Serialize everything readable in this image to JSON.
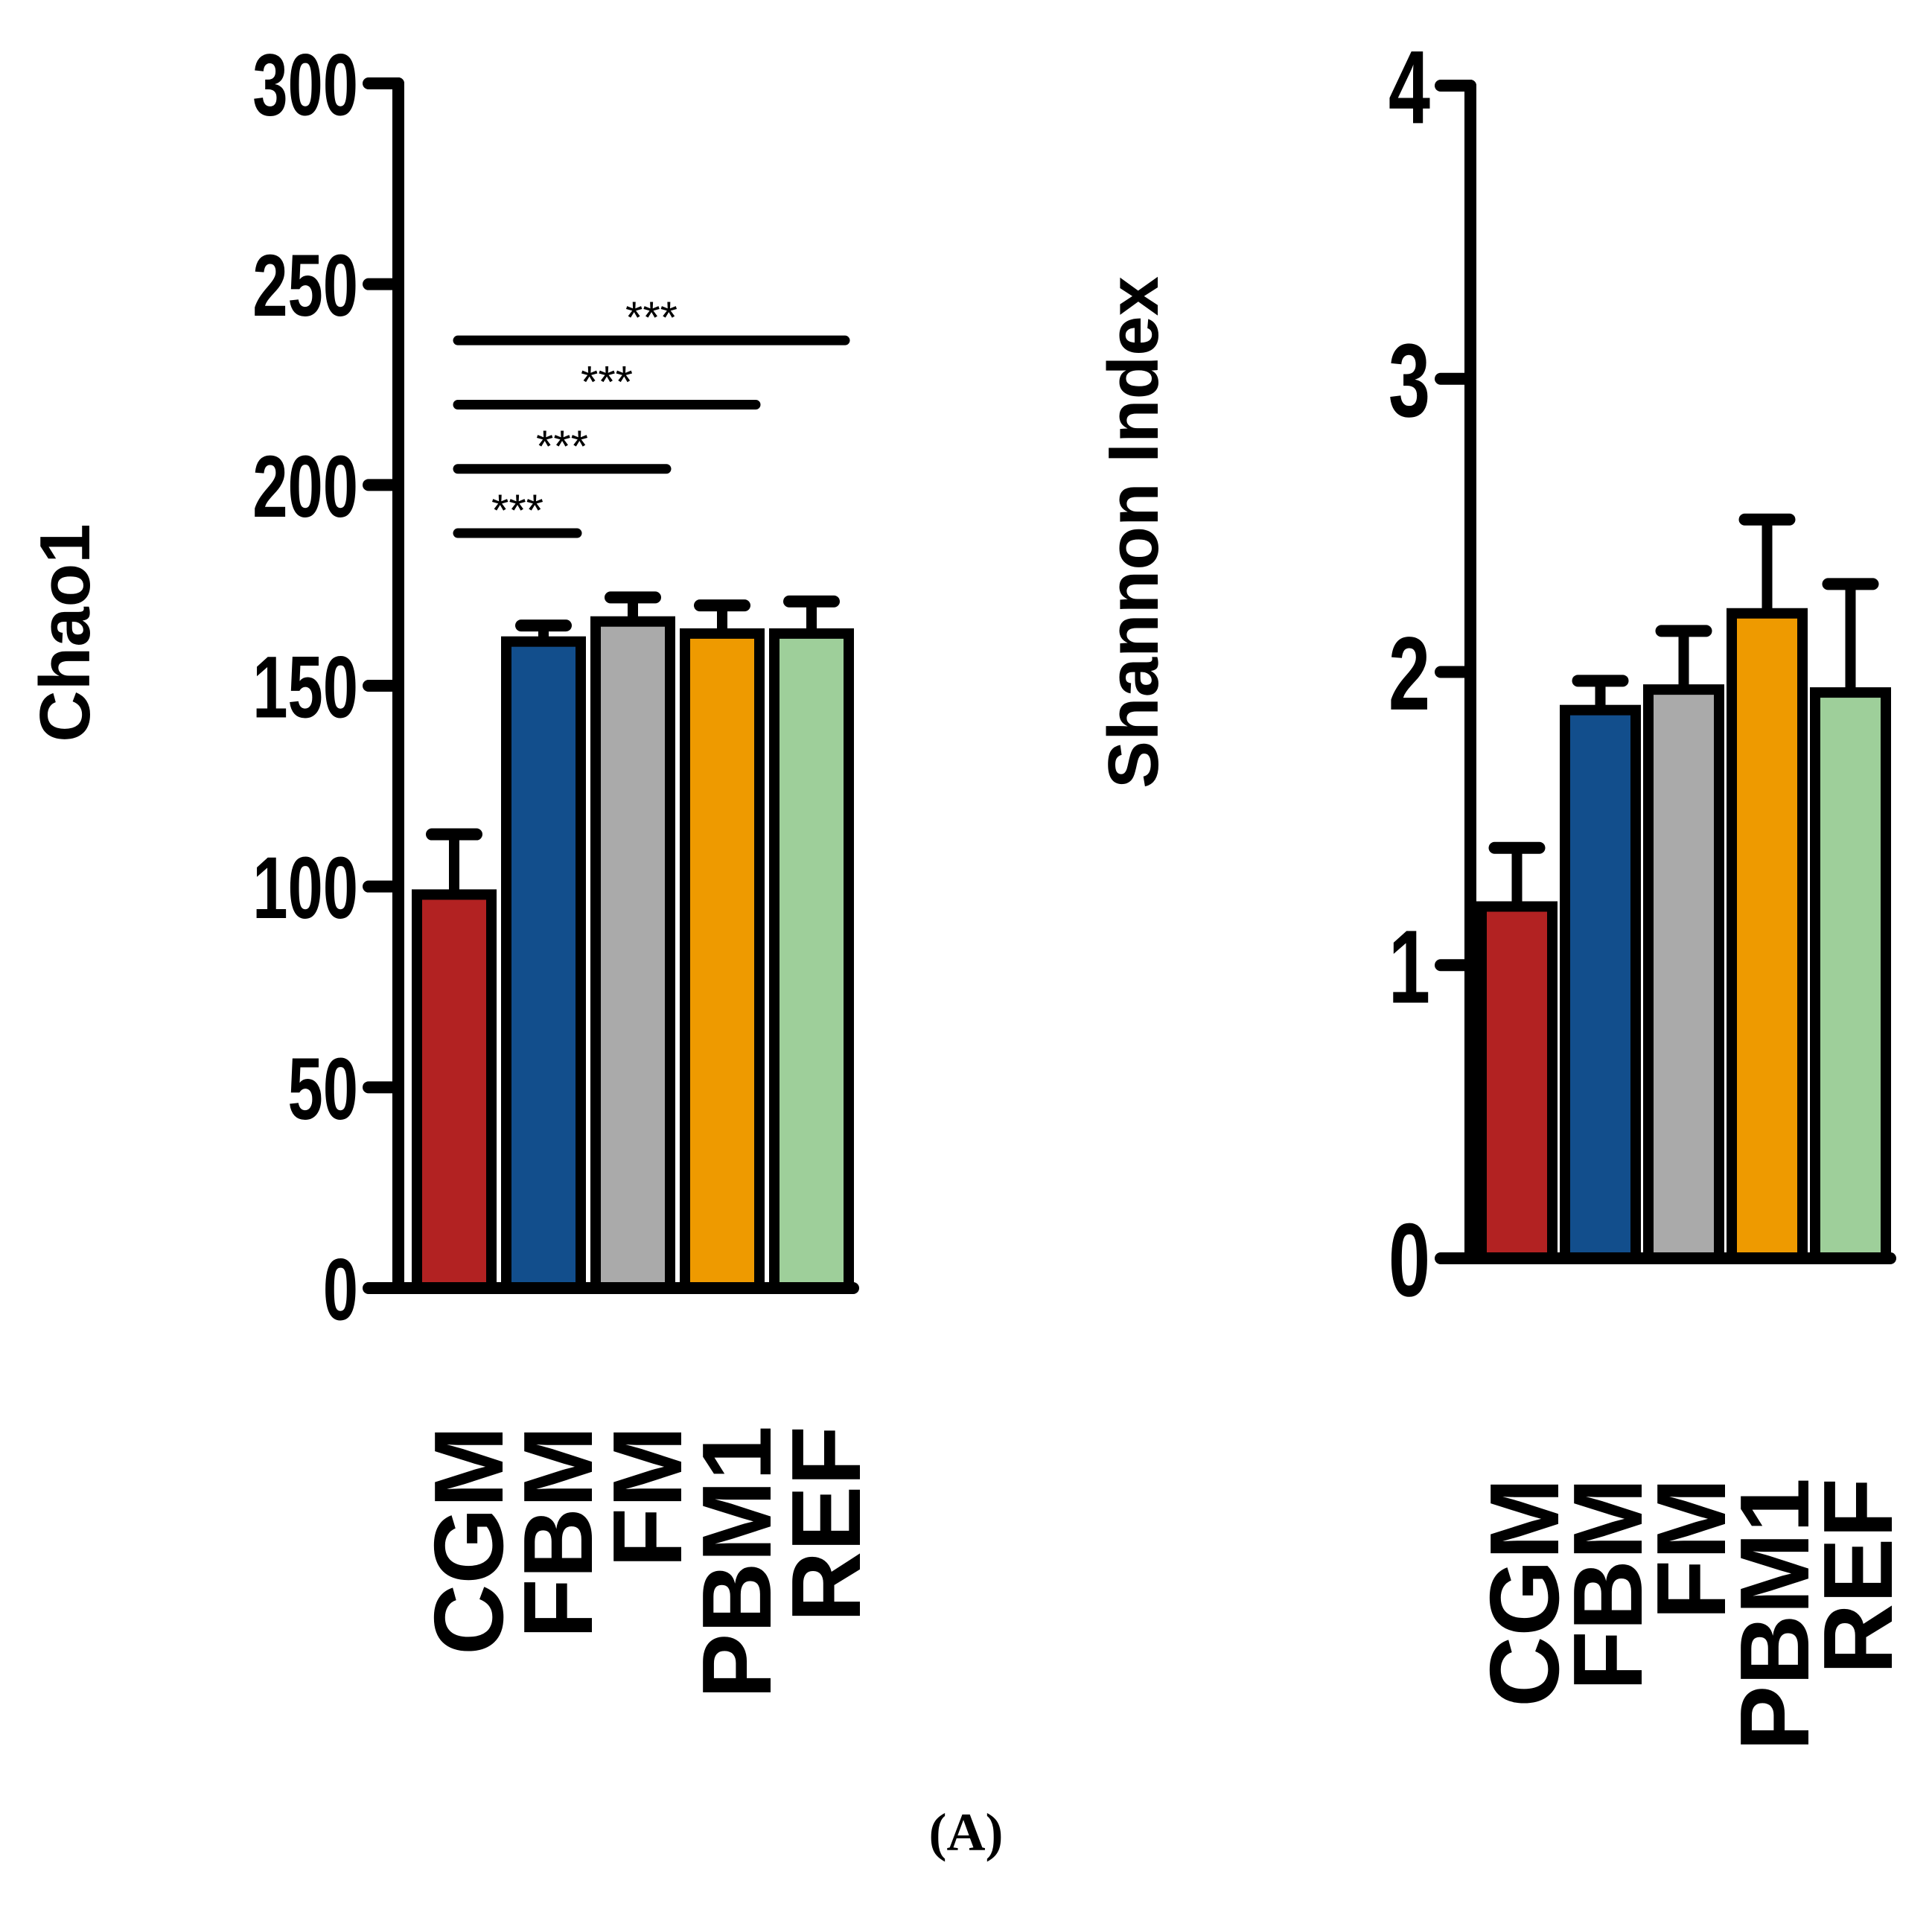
{
  "caption": "(A)",
  "chart_data": [
    {
      "type": "bar",
      "title": "",
      "xlabel": "",
      "ylabel": "Chao1",
      "ylim": [
        0,
        300
      ],
      "yticks": [
        "0",
        "50",
        "100",
        "150",
        "200",
        "250",
        "300"
      ],
      "categories": [
        "CGM",
        "FBM",
        "FM",
        "PBM1",
        "REF"
      ],
      "values": [
        98,
        161,
        166,
        163,
        163
      ],
      "errors": [
        15,
        4,
        6,
        7,
        8
      ],
      "colors": [
        "#B22222",
        "#124E8C",
        "#AAAAAA",
        "#EE9A00",
        "#9ECF9A"
      ],
      "significance": [
        {
          "from": "CGM",
          "to": "FBM",
          "y": 188,
          "label": "***"
        },
        {
          "from": "CGM",
          "to": "FM",
          "y": 204,
          "label": "***"
        },
        {
          "from": "CGM",
          "to": "PBM1",
          "y": 220,
          "label": "***"
        },
        {
          "from": "CGM",
          "to": "REF",
          "y": 236,
          "label": "***"
        }
      ]
    },
    {
      "type": "bar",
      "title": "",
      "xlabel": "",
      "ylabel": "Shannon Index",
      "ylim": [
        0,
        4
      ],
      "yticks": [
        "0",
        "1",
        "2",
        "3",
        "4"
      ],
      "categories": [
        "CGM",
        "FBM",
        "FM",
        "PBM1",
        "REF"
      ],
      "values": [
        1.2,
        1.87,
        1.94,
        2.2,
        1.93
      ],
      "errors": [
        0.2,
        0.1,
        0.2,
        0.32,
        0.37
      ],
      "colors": [
        "#B22222",
        "#124E8C",
        "#AAAAAA",
        "#EE9A00",
        "#9ECF9A"
      ],
      "significance": []
    }
  ]
}
